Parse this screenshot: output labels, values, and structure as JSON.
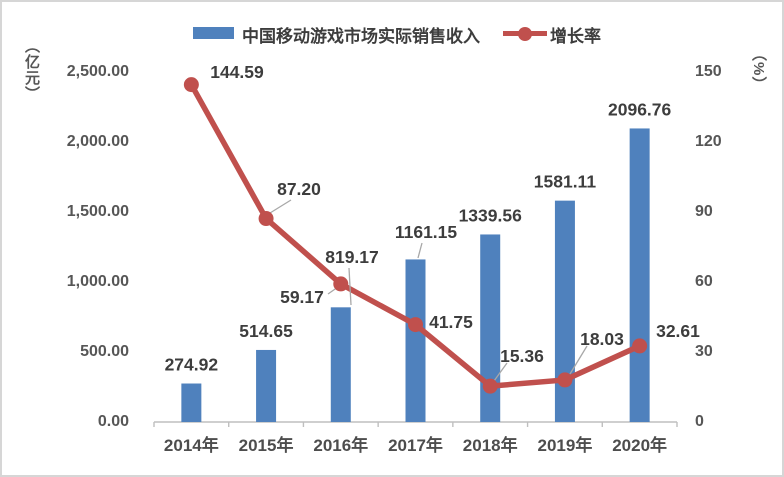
{
  "chart_data": {
    "type": "bar",
    "subtype": "combo-bar-line",
    "title": "",
    "categories": [
      "2014年",
      "2015年",
      "2016年",
      "2017年",
      "2018年",
      "2019年",
      "2020年"
    ],
    "series": [
      {
        "name": "中国移动游戏市场实际销售收入",
        "type": "bar",
        "axis": "left",
        "color": "#4F81BD",
        "values": [
          274.92,
          514.65,
          819.17,
          1161.15,
          1339.56,
          1581.11,
          2096.76
        ],
        "labels": [
          "274.92",
          "514.65",
          "819.17",
          "1161.15",
          "1339.56",
          "1581.11",
          "2096.76"
        ]
      },
      {
        "name": "增长率",
        "type": "line",
        "axis": "right",
        "color": "#C0504D",
        "values": [
          144.59,
          87.2,
          59.17,
          41.75,
          15.36,
          18.03,
          32.61
        ],
        "labels": [
          "144.59",
          "87.20",
          "59.17",
          "41.75",
          "15.36",
          "18.03",
          "32.61"
        ]
      }
    ],
    "left_axis": {
      "title": "（亿元）",
      "min": 0,
      "max": 2500,
      "ticks": [
        "2,500.00",
        "2,000.00",
        "1,500.00",
        "1,000.00",
        "500.00",
        "0.00"
      ]
    },
    "right_axis": {
      "title": "（%）",
      "min": 0,
      "max": 150,
      "ticks": [
        "150",
        "120",
        "90",
        "60",
        "30",
        "0"
      ]
    },
    "legend_position": "top",
    "grid": false,
    "colors": {
      "bar": "#4F81BD",
      "line": "#C0504D",
      "axis_line": "#BFBFBF",
      "leader_line": "#A8A8A8",
      "label_text": "#3D3D3D",
      "tick_text": "#565656"
    }
  }
}
